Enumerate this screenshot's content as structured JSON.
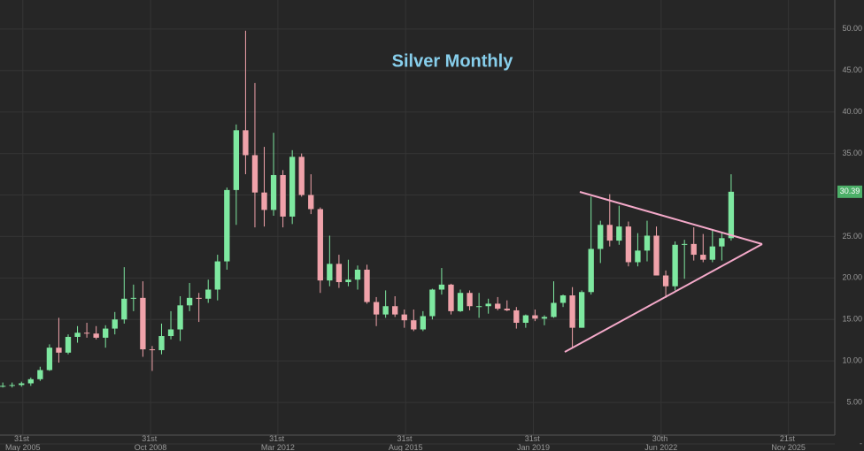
{
  "chart_data": {
    "type": "candlestick",
    "title": "Silver Monthly",
    "x": [
      2004.875,
      2005.125,
      2005.375,
      2005.625,
      2005.875,
      2006.125,
      2006.375,
      2006.625,
      2006.875,
      2007.125,
      2007.375,
      2007.625,
      2007.875,
      2008.125,
      2008.375,
      2008.625,
      2008.875,
      2009.125,
      2009.375,
      2009.625,
      2009.875,
      2010.125,
      2010.375,
      2010.625,
      2010.875,
      2011.125,
      2011.375,
      2011.625,
      2011.875,
      2012.125,
      2012.375,
      2012.625,
      2012.875,
      2013.125,
      2013.375,
      2013.625,
      2013.875,
      2014.125,
      2014.375,
      2014.625,
      2014.875,
      2015.125,
      2015.375,
      2015.625,
      2015.875,
      2016.125,
      2016.375,
      2016.625,
      2016.875,
      2017.125,
      2017.375,
      2017.625,
      2017.875,
      2018.125,
      2018.375,
      2018.625,
      2018.875,
      2019.125,
      2019.375,
      2019.625,
      2019.875,
      2020.125,
      2020.375,
      2020.625,
      2020.875,
      2021.125,
      2021.375,
      2021.625,
      2021.875,
      2022.125,
      2022.375,
      2022.625,
      2022.875,
      2023.125,
      2023.375,
      2023.625,
      2023.875,
      2024.125,
      2024.375
    ],
    "open": [
      6.9,
      7.0,
      7.1,
      7.3,
      7.8,
      8.9,
      11.6,
      11.0,
      12.9,
      13.4,
      13.3,
      12.8,
      13.9,
      15.0,
      17.5,
      17.6,
      11.4,
      11.3,
      13.0,
      13.8,
      16.7,
      17.6,
      17.5,
      18.6,
      22.0,
      30.6,
      37.8,
      34.8,
      30.3,
      28.2,
      32.4,
      27.4,
      34.6,
      30.0,
      28.3,
      19.7,
      21.7,
      19.5,
      19.8,
      21.0,
      17.1,
      15.6,
      16.6,
      15.6,
      14.9,
      13.8,
      15.4,
      18.6,
      19.2,
      16.0,
      18.2,
      16.6,
      16.6,
      16.9,
      16.3,
      16.1,
      14.6,
      15.5,
      15.1,
      15.3,
      17.0,
      17.9,
      14.0,
      18.3,
      23.5,
      26.4,
      24.5,
      26.2,
      21.9,
      23.3,
      25.1,
      20.3,
      19.0,
      24.0,
      24.1,
      22.8,
      22.2,
      23.8,
      24.8
    ],
    "high": [
      7.4,
      7.4,
      7.5,
      8.0,
      9.3,
      12.0,
      15.2,
      13.2,
      14.2,
      14.6,
      14.2,
      14.3,
      15.9,
      21.3,
      19.2,
      19.6,
      11.8,
      14.5,
      16.0,
      17.8,
      19.4,
      18.2,
      19.8,
      22.8,
      30.9,
      38.5,
      49.8,
      43.5,
      35.8,
      37.5,
      33.0,
      35.4,
      35.0,
      32.5,
      28.5,
      25.1,
      22.8,
      22.2,
      21.5,
      21.6,
      17.7,
      18.5,
      17.8,
      16.2,
      16.2,
      16.0,
      18.7,
      21.2,
      19.3,
      18.6,
      18.5,
      18.2,
      17.5,
      17.7,
      17.3,
      16.5,
      15.6,
      16.2,
      15.5,
      19.6,
      18.0,
      18.9,
      18.5,
      29.8,
      26.9,
      30.1,
      28.7,
      26.8,
      25.4,
      26.9,
      26.2,
      20.9,
      24.4,
      24.6,
      26.1,
      25.3,
      25.9,
      25.5,
      32.5
    ],
    "low": [
      6.8,
      6.8,
      6.9,
      7.0,
      7.6,
      8.8,
      9.8,
      10.8,
      12.2,
      12.8,
      12.6,
      11.6,
      13.2,
      14.5,
      16.0,
      10.5,
      8.8,
      10.8,
      12.6,
      12.4,
      16.0,
      14.7,
      17.0,
      17.3,
      21.0,
      26.4,
      32.5,
      26.1,
      26.2,
      27.5,
      26.1,
      26.5,
      29.8,
      27.7,
      18.2,
      19.0,
      18.8,
      19.0,
      18.6,
      16.9,
      14.2,
      15.2,
      15.3,
      14.0,
      13.6,
      13.6,
      15.0,
      18.0,
      15.6,
      15.9,
      16.1,
      15.2,
      15.7,
      16.1,
      16.0,
      13.9,
      14.0,
      14.8,
      14.3,
      15.2,
      16.5,
      11.6,
      14.0,
      18.0,
      21.8,
      23.8,
      24.0,
      21.4,
      21.4,
      22.0,
      20.5,
      17.6,
      18.5,
      19.9,
      22.1,
      21.9,
      21.9,
      22.1,
      24.5
    ],
    "close": [
      7.0,
      7.1,
      7.3,
      7.8,
      8.9,
      11.6,
      11.0,
      12.9,
      13.4,
      13.3,
      12.8,
      13.9,
      15.0,
      17.5,
      17.6,
      11.4,
      11.3,
      13.0,
      13.8,
      16.7,
      17.6,
      17.5,
      18.6,
      22.0,
      30.6,
      37.8,
      34.8,
      30.3,
      28.2,
      32.4,
      27.4,
      34.6,
      30.0,
      28.3,
      19.7,
      21.7,
      19.5,
      19.8,
      21.0,
      17.1,
      15.6,
      16.6,
      15.6,
      14.9,
      13.8,
      15.4,
      18.6,
      19.2,
      16.0,
      18.2,
      16.6,
      16.6,
      16.9,
      16.3,
      16.1,
      14.6,
      15.5,
      15.1,
      15.3,
      17.0,
      17.9,
      14.0,
      18.3,
      23.5,
      26.4,
      24.5,
      26.2,
      21.9,
      23.3,
      25.1,
      20.3,
      19.0,
      24.0,
      24.1,
      22.8,
      22.2,
      23.8,
      24.8,
      30.39
    ],
    "up_color": "#7ee8a0",
    "down_color": "#f0a2aa",
    "last_price": 30.39,
    "xlim": [
      2004.8,
      2027.15
    ],
    "xticks": [
      {
        "value": 2005.41,
        "label": "31st May 2005"
      },
      {
        "value": 2008.83,
        "label": "31st Oct 2008"
      },
      {
        "value": 2012.24,
        "label": "31st Mar 2012"
      },
      {
        "value": 2015.66,
        "label": "31st Aug 2015"
      },
      {
        "value": 2019.08,
        "label": "31st Jan 2019"
      },
      {
        "value": 2022.5,
        "label": "30th Jun 2022"
      },
      {
        "value": 2025.91,
        "label": "21st Nov 2025"
      }
    ],
    "ylim": [
      0,
      53.5
    ],
    "yticks": [
      {
        "value": 0,
        "label": "-"
      },
      {
        "value": 5,
        "label": "5.00"
      },
      {
        "value": 10,
        "label": "10.00"
      },
      {
        "value": 15,
        "label": "15.00"
      },
      {
        "value": 20,
        "label": "20.00"
      },
      {
        "value": 25,
        "label": "25.00"
      },
      {
        "value": 30,
        "label": "30.00"
      },
      {
        "value": 35,
        "label": "35.00"
      },
      {
        "value": 40,
        "label": "40.00"
      },
      {
        "value": 45,
        "label": "45.00"
      },
      {
        "value": 50,
        "label": "50.00"
      }
    ],
    "grid": true
  }
}
